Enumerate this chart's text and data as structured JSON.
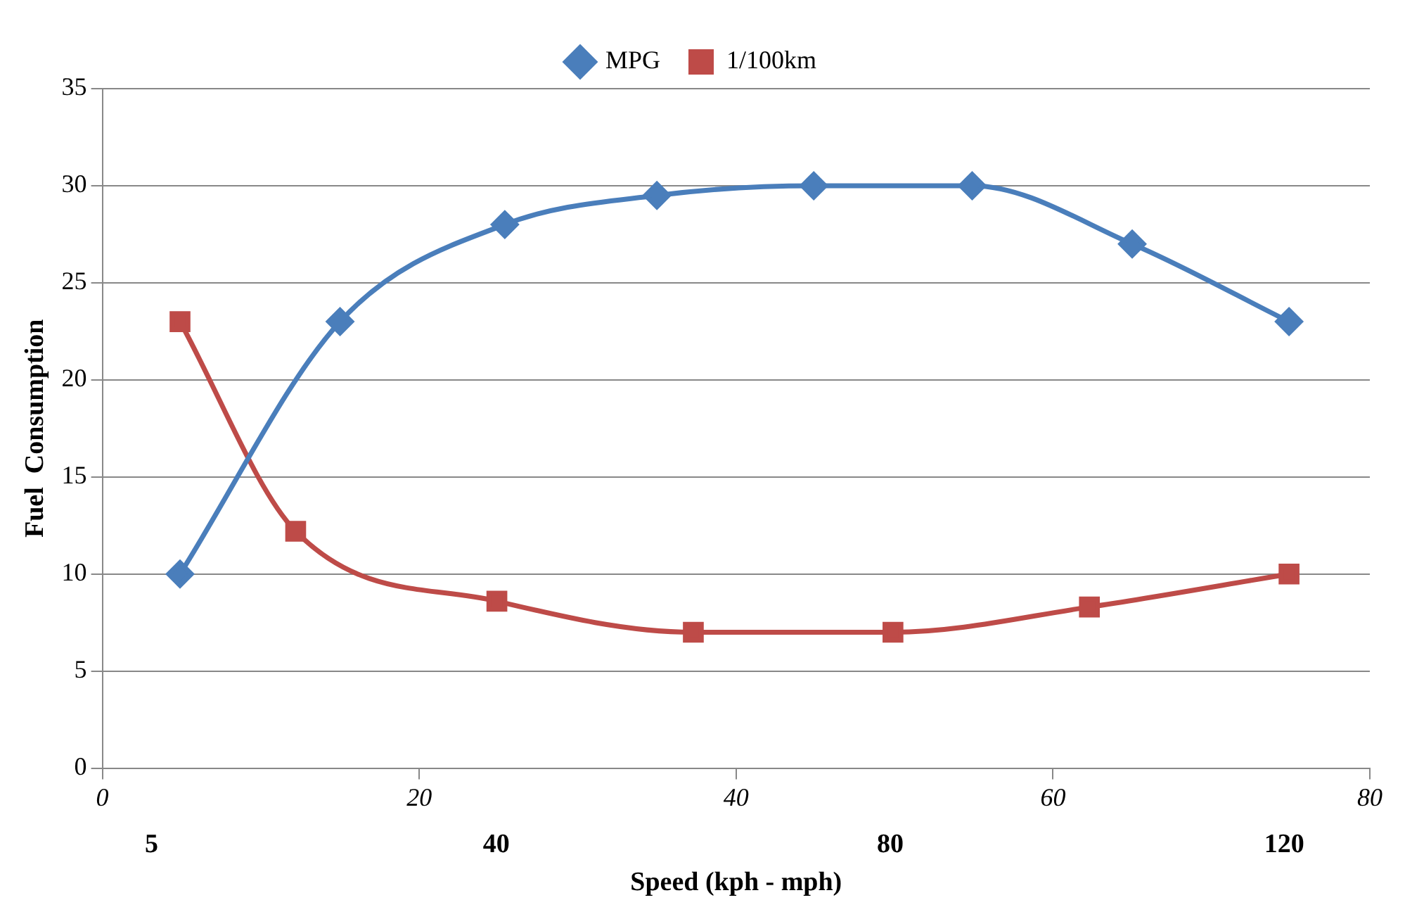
{
  "chart_data": {
    "type": "line",
    "xlabel": "Speed (kph - mph)",
    "ylabel": "Fuel  Consumption",
    "xlim": [
      0,
      80
    ],
    "xticks": [
      0,
      20,
      40,
      60,
      80
    ],
    "x2lim": [
      0,
      128.7
    ],
    "x2ticks": [
      5,
      40,
      80,
      120
    ],
    "ylim": [
      0,
      35
    ],
    "yticks": [
      0,
      5,
      10,
      15,
      20,
      25,
      30,
      35
    ],
    "grid": "y",
    "legend": "top",
    "series": [
      {
        "name": "MPG",
        "color": "#4a7ebb",
        "marker": "diamond",
        "x": [
          4.9,
          15.0,
          25.4,
          35.0,
          44.9,
          54.9,
          65.0,
          74.9
        ],
        "values": [
          10,
          23,
          28,
          29.5,
          30,
          30,
          27,
          23
        ]
      },
      {
        "name": "1/100km",
        "color": "#be4b48",
        "marker": "square",
        "x": [
          4.9,
          12.2,
          24.9,
          37.3,
          49.9,
          62.3,
          74.9
        ],
        "values": [
          23,
          12.2,
          8.6,
          7,
          7,
          8.3,
          10
        ]
      }
    ]
  }
}
